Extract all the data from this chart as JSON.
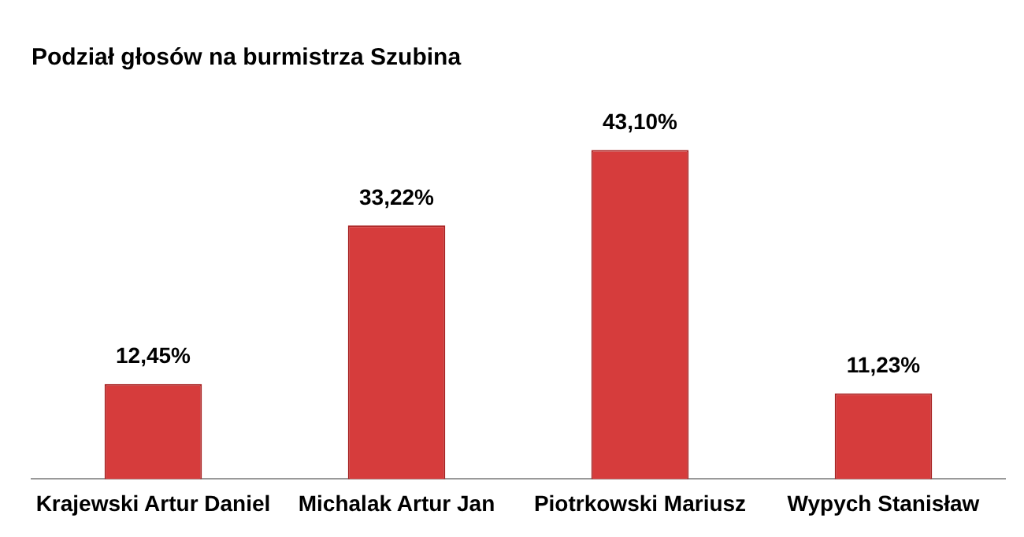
{
  "chart_data": {
    "type": "bar",
    "title": "Podział głosów na burmistrza Szubina",
    "categories": [
      "Krajewski Artur Daniel",
      "Michalak Artur Jan",
      "Piotrkowski Mariusz",
      "Wypych Stanisław"
    ],
    "values": [
      12.45,
      33.22,
      43.1,
      11.23
    ],
    "value_labels": [
      "12,45%",
      "33,22%",
      "43,10%",
      "11,23%"
    ],
    "color": "#d63c3c",
    "grid": false,
    "legend": false
  }
}
